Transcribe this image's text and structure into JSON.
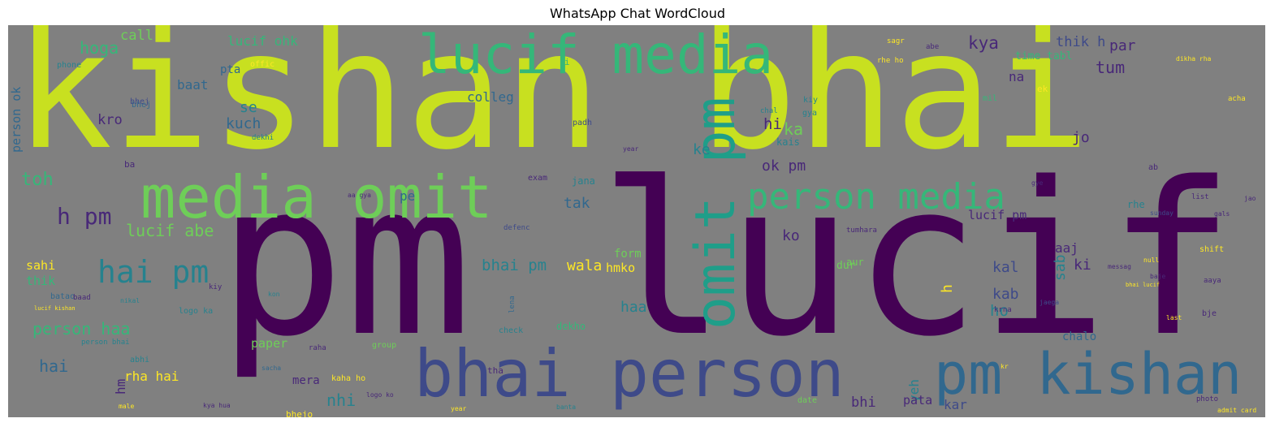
{
  "title": "WhatsApp Chat WordCloud",
  "background_color": "#808080",
  "palette": [
    "#c8e020",
    "#440154",
    "#482878",
    "#3e4a89",
    "#31688e",
    "#26828e",
    "#1f9e89",
    "#35b779",
    "#6ece58",
    "#fde725"
  ],
  "words": [
    {
      "text": "kishan bhai",
      "color": "#c8e020",
      "orientation": "horizontal"
    },
    {
      "text": "pm lucif",
      "color": "#440154",
      "orientation": "horizontal"
    },
    {
      "text": "lucif media",
      "color": "#35b779",
      "orientation": "horizontal"
    },
    {
      "text": "media omit",
      "color": "#6ece58",
      "orientation": "horizontal"
    },
    {
      "text": "omit pm",
      "color": "#1f9e89",
      "orientation": "vertical"
    },
    {
      "text": "person media",
      "color": "#35b779",
      "orientation": "horizontal"
    },
    {
      "text": "bhai person",
      "color": "#3e4a89",
      "orientation": "horizontal"
    },
    {
      "text": "pm kishan",
      "color": "#31688e",
      "orientation": "horizontal"
    },
    {
      "text": "hai pm",
      "color": "#26828e",
      "orientation": "horizontal"
    },
    {
      "text": "h pm",
      "color": "#482878",
      "orientation": "horizontal"
    },
    {
      "text": "lucif abe",
      "color": "#6ece58",
      "orientation": "horizontal"
    },
    {
      "text": "toh",
      "color": "#35b779",
      "orientation": "horizontal"
    },
    {
      "text": "hoga",
      "color": "#35b779",
      "orientation": "horizontal"
    },
    {
      "text": "call",
      "color": "#6ece58",
      "orientation": "horizontal"
    },
    {
      "text": "baat",
      "color": "#31688e",
      "orientation": "horizontal"
    },
    {
      "text": "lucif ohk",
      "color": "#35b779",
      "orientation": "horizontal"
    },
    {
      "text": "person ok",
      "color": "#31688e",
      "orientation": "vertical"
    },
    {
      "text": "kro",
      "color": "#482878",
      "orientation": "horizontal"
    },
    {
      "text": "colleg",
      "color": "#31688e",
      "orientation": "horizontal"
    },
    {
      "text": "pta",
      "color": "#31688e",
      "orientation": "horizontal"
    },
    {
      "text": "se",
      "color": "#26828e",
      "orientation": "horizontal"
    },
    {
      "text": "kuch",
      "color": "#31688e",
      "orientation": "horizontal"
    },
    {
      "text": "kya",
      "color": "#482878",
      "orientation": "horizontal"
    },
    {
      "text": "thik h",
      "color": "#3e4a89",
      "orientation": "horizontal"
    },
    {
      "text": "par",
      "color": "#482878",
      "orientation": "horizontal"
    },
    {
      "text": "tum",
      "color": "#482878",
      "orientation": "horizontal"
    },
    {
      "text": "time tabl",
      "color": "#35b779",
      "orientation": "horizontal"
    },
    {
      "text": "na",
      "color": "#482878",
      "orientation": "horizontal"
    },
    {
      "text": "hi",
      "color": "#482878",
      "orientation": "horizontal"
    },
    {
      "text": "ka",
      "color": "#6ece58",
      "orientation": "horizontal"
    },
    {
      "text": "ke",
      "color": "#26828e",
      "orientation": "horizontal"
    },
    {
      "text": "ok pm",
      "color": "#482878",
      "orientation": "horizontal"
    },
    {
      "text": "tak",
      "color": "#31688e",
      "orientation": "horizontal"
    },
    {
      "text": "pe",
      "color": "#31688e",
      "orientation": "horizontal"
    },
    {
      "text": "jo",
      "color": "#482878",
      "orientation": "horizontal"
    },
    {
      "text": "ko",
      "color": "#482878",
      "orientation": "horizontal"
    },
    {
      "text": "lucif pm",
      "color": "#482878",
      "orientation": "horizontal"
    },
    {
      "text": "bhai pm",
      "color": "#26828e",
      "orientation": "horizontal"
    },
    {
      "text": "wala",
      "color": "#fde725",
      "orientation": "horizontal"
    },
    {
      "text": "hmko",
      "color": "#fde725",
      "orientation": "horizontal"
    },
    {
      "text": "form",
      "color": "#6ece58",
      "orientation": "horizontal"
    },
    {
      "text": "kal",
      "color": "#3e4a89",
      "orientation": "horizontal"
    },
    {
      "text": "kab",
      "color": "#3e4a89",
      "orientation": "horizontal"
    },
    {
      "text": "ho",
      "color": "#26828e",
      "orientation": "horizontal"
    },
    {
      "text": "sab",
      "color": "#26828e",
      "orientation": "vertical"
    },
    {
      "text": "haa",
      "color": "#26828e",
      "orientation": "horizontal"
    },
    {
      "text": "h",
      "color": "#fde725",
      "orientation": "vertical"
    },
    {
      "text": "ki",
      "color": "#482878",
      "orientation": "horizontal"
    },
    {
      "text": "aaj",
      "color": "#482878",
      "orientation": "horizontal"
    },
    {
      "text": "sahi",
      "color": "#fde725",
      "orientation": "horizontal"
    },
    {
      "text": "thik",
      "color": "#35b779",
      "orientation": "horizontal"
    },
    {
      "text": "person haa",
      "color": "#35b779",
      "orientation": "horizontal"
    },
    {
      "text": "hai",
      "color": "#31688e",
      "orientation": "horizontal"
    },
    {
      "text": "rha hai",
      "color": "#fde725",
      "orientation": "horizontal"
    },
    {
      "text": "paper",
      "color": "#6ece58",
      "orientation": "horizontal"
    },
    {
      "text": "mera",
      "color": "#482878",
      "orientation": "horizontal"
    },
    {
      "text": "nhi",
      "color": "#26828e",
      "orientation": "horizontal"
    },
    {
      "text": "yeh",
      "color": "#26828e",
      "orientation": "vertical"
    },
    {
      "text": "bhi",
      "color": "#482878",
      "orientation": "horizontal"
    },
    {
      "text": "pata",
      "color": "#482878",
      "orientation": "horizontal"
    },
    {
      "text": "kar",
      "color": "#3e4a89",
      "orientation": "horizontal"
    },
    {
      "text": "chalo",
      "color": "#31688e",
      "orientation": "horizontal"
    },
    {
      "text": "ba",
      "color": "#482878",
      "orientation": "horizontal"
    },
    {
      "text": "bhej",
      "color": "#31688e",
      "orientation": "horizontal"
    },
    {
      "text": "phone",
      "color": "#26828e",
      "orientation": "horizontal"
    },
    {
      "text": "i",
      "color": "#35b779",
      "orientation": "horizontal"
    },
    {
      "text": "offic",
      "color": "#fde725",
      "orientation": "horizontal"
    },
    {
      "text": "abe",
      "color": "#482878",
      "orientation": "horizontal"
    },
    {
      "text": "rhe ho",
      "color": "#fde725",
      "orientation": "horizontal"
    },
    {
      "text": "ek",
      "color": "#fde725",
      "orientation": "horizontal"
    },
    {
      "text": "acha",
      "color": "#fde725",
      "orientation": "horizontal"
    },
    {
      "text": "exam",
      "color": "#482878",
      "orientation": "horizontal"
    },
    {
      "text": "jana",
      "color": "#26828e",
      "orientation": "horizontal"
    },
    {
      "text": "kais",
      "color": "#26828e",
      "orientation": "horizontal"
    },
    {
      "text": "aa gya",
      "color": "#482878",
      "orientation": "horizontal"
    },
    {
      "text": "rhe",
      "color": "#26828e",
      "orientation": "horizontal"
    },
    {
      "text": "gye",
      "color": "#482878",
      "orientation": "horizontal"
    },
    {
      "text": "ab",
      "color": "#482878",
      "orientation": "horizontal"
    },
    {
      "text": "jao",
      "color": "#482878",
      "orientation": "horizontal"
    },
    {
      "text": "list",
      "color": "#482878",
      "orientation": "horizontal"
    },
    {
      "text": "sunday",
      "color": "#3e4a89",
      "orientation": "horizontal"
    },
    {
      "text": "defenc",
      "color": "#3e4a89",
      "orientation": "horizontal"
    },
    {
      "text": "tumhara",
      "color": "#482878",
      "orientation": "horizontal"
    },
    {
      "text": "dur",
      "color": "#6ece58",
      "orientation": "horizontal"
    },
    {
      "text": "shift",
      "color": "#fde725",
      "orientation": "horizontal"
    },
    {
      "text": "null",
      "color": "#fde725",
      "orientation": "horizontal"
    },
    {
      "text": "krna",
      "color": "#482878",
      "orientation": "horizontal"
    },
    {
      "text": "aaya",
      "color": "#482878",
      "orientation": "horizontal"
    },
    {
      "text": "bje",
      "color": "#482878",
      "orientation": "horizontal"
    },
    {
      "text": "jaega",
      "color": "#3e4a89",
      "orientation": "horizontal"
    },
    {
      "text": "batao",
      "color": "#31688e",
      "orientation": "horizontal"
    },
    {
      "text": "baad",
      "color": "#482878",
      "orientation": "horizontal"
    },
    {
      "text": "nikal",
      "color": "#26828e",
      "orientation": "horizontal"
    },
    {
      "text": "kiy",
      "color": "#482878",
      "orientation": "horizontal"
    },
    {
      "text": "logo ka",
      "color": "#26828e",
      "orientation": "horizontal"
    },
    {
      "text": "lucif kishan",
      "color": "#fde725",
      "orientation": "horizontal"
    },
    {
      "text": "abhi",
      "color": "#26828e",
      "orientation": "horizontal"
    },
    {
      "text": "person bhai",
      "color": "#26828e",
      "orientation": "horizontal"
    },
    {
      "text": "raha",
      "color": "#482878",
      "orientation": "horizontal"
    },
    {
      "text": "check",
      "color": "#26828e",
      "orientation": "horizontal"
    },
    {
      "text": "dekho",
      "color": "#35b779",
      "orientation": "horizontal"
    },
    {
      "text": "tha",
      "color": "#482878",
      "orientation": "horizontal"
    },
    {
      "text": "group",
      "color": "#6ece58",
      "orientation": "horizontal"
    },
    {
      "text": "kaha ho",
      "color": "#fde725",
      "orientation": "horizontal"
    },
    {
      "text": "bhejo",
      "color": "#fde725",
      "orientation": "horizontal"
    },
    {
      "text": "logo ko",
      "color": "#482878",
      "orientation": "horizontal"
    },
    {
      "text": "sacha",
      "color": "#31688e",
      "orientation": "horizontal"
    },
    {
      "text": "lena",
      "color": "#31688e",
      "orientation": "vertical"
    },
    {
      "text": "date",
      "color": "#6ece58",
      "orientation": "horizontal"
    },
    {
      "text": "photo",
      "color": "#482878",
      "orientation": "horizontal"
    },
    {
      "text": "admit card",
      "color": "#fde725",
      "orientation": "horizontal"
    },
    {
      "text": "kya hua",
      "color": "#482878",
      "orientation": "horizontal"
    },
    {
      "text": "male",
      "color": "#fde725",
      "orientation": "horizontal"
    },
    {
      "text": "padh",
      "color": "#3e4a89",
      "orientation": "horizontal"
    },
    {
      "text": "chal",
      "color": "#26828e",
      "orientation": "horizontal"
    },
    {
      "text": "mil",
      "color": "#35b779",
      "orientation": "horizontal"
    },
    {
      "text": "dikha rha",
      "color": "#fde725",
      "orientation": "horizontal"
    },
    {
      "text": "bhai lucif",
      "color": "#fde725",
      "orientation": "horizontal"
    },
    {
      "text": "hm",
      "color": "#482878",
      "orientation": "vertical"
    },
    {
      "text": "aur",
      "color": "#6ece58",
      "orientation": "horizontal"
    },
    {
      "text": "sagr",
      "color": "#fde725",
      "orientation": "horizontal"
    },
    {
      "text": "dekhi",
      "color": "#26828e",
      "orientation": "horizontal"
    },
    {
      "text": "year",
      "color": "#482878",
      "orientation": "horizontal"
    },
    {
      "text": "bhej",
      "color": "#3e4a89",
      "orientation": "horizontal"
    },
    {
      "text": "gya",
      "color": "#26828e",
      "orientation": "horizontal"
    },
    {
      "text": "kiy",
      "color": "#26828e",
      "orientation": "horizontal"
    },
    {
      "text": "gals",
      "color": "#482878",
      "orientation": "horizontal"
    },
    {
      "text": "messag",
      "color": "#482878",
      "orientation": "horizontal"
    },
    {
      "text": "baje",
      "color": "#482878",
      "orientation": "horizontal"
    },
    {
      "text": "kon",
      "color": "#26828e",
      "orientation": "horizontal"
    },
    {
      "text": "year",
      "color": "#fde725",
      "orientation": "horizontal"
    },
    {
      "text": "banta",
      "color": "#26828e",
      "orientation": "horizontal"
    },
    {
      "text": "kr",
      "color": "#fde725",
      "orientation": "horizontal"
    },
    {
      "text": "last",
      "color": "#fde725",
      "orientation": "horizontal"
    }
  ]
}
